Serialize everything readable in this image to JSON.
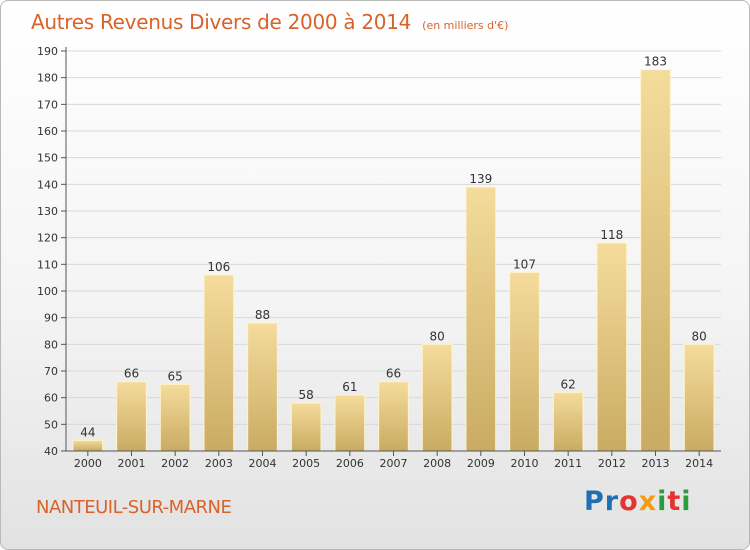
{
  "chart_data": {
    "type": "bar",
    "title": "Autres Revenus Divers de 2000 à 2014",
    "subtitle": "(en milliers d'€)",
    "categories": [
      "2000",
      "2001",
      "2002",
      "2003",
      "2004",
      "2005",
      "2006",
      "2007",
      "2008",
      "2009",
      "2010",
      "2011",
      "2012",
      "2013",
      "2014"
    ],
    "values": [
      44,
      66,
      65,
      106,
      88,
      58,
      61,
      66,
      80,
      139,
      107,
      62,
      118,
      183,
      80
    ],
    "ylim": [
      40,
      190
    ],
    "yticks": [
      40,
      50,
      60,
      70,
      80,
      90,
      100,
      110,
      120,
      130,
      140,
      150,
      160,
      170,
      180,
      190
    ],
    "grid": true,
    "bar_color": "#e9c97e",
    "legend": "none"
  },
  "footer": {
    "town": "NANTEUIL-SUR-MARNE",
    "logo": "Proxiti"
  },
  "colors": {
    "title": "#d9622b",
    "grid": "#d8d8d8"
  }
}
